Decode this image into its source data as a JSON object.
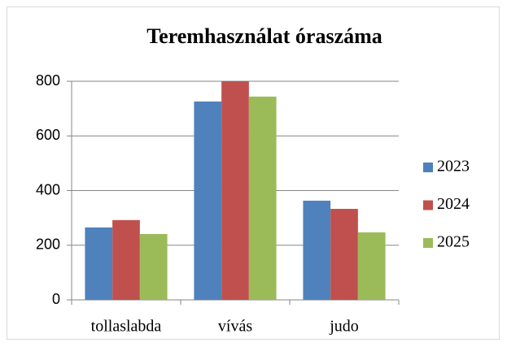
{
  "chart_data": {
    "type": "bar",
    "title": "Teremhasználat óraszáma",
    "categories": [
      "tollaslabda",
      "vívás",
      "judo"
    ],
    "series": [
      {
        "name": "2023",
        "color": "#4f81bd",
        "values": [
          265,
          726,
          363
        ]
      },
      {
        "name": "2024",
        "color": "#c0504d",
        "values": [
          292,
          800,
          333
        ]
      },
      {
        "name": "2025",
        "color": "#9bbb59",
        "values": [
          241,
          744,
          247
        ]
      }
    ],
    "ylim": [
      0,
      800
    ],
    "yticks": [
      0,
      200,
      400,
      600,
      800
    ],
    "grid": true,
    "legend": "right"
  }
}
